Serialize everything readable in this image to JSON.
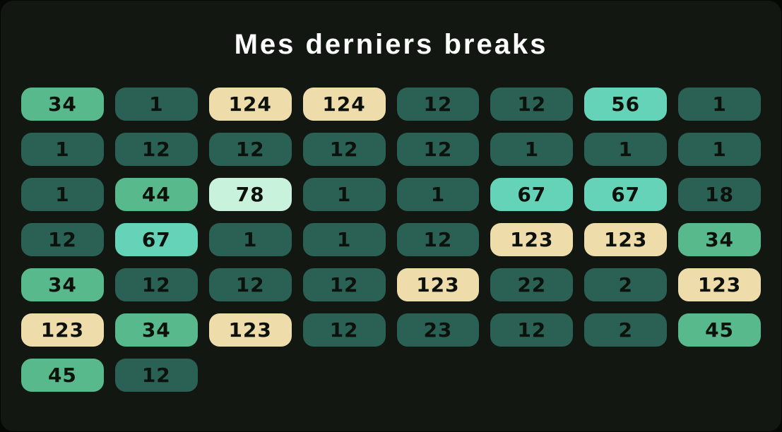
{
  "header": {
    "title": "Mes derniers breaks"
  },
  "colors": {
    "page_bg": "#050805",
    "panel_bg": "#121711",
    "title_text": "#fcfdfc",
    "pill_text": "#0c110c"
  },
  "chart_data": {
    "type": "heatmap",
    "title": "Mes derniers breaks",
    "columns": 8,
    "values": [
      34,
      1,
      124,
      124,
      12,
      12,
      56,
      1,
      1,
      12,
      12,
      12,
      12,
      1,
      1,
      1,
      1,
      44,
      78,
      1,
      1,
      67,
      67,
      18,
      12,
      67,
      1,
      1,
      12,
      123,
      123,
      34,
      34,
      12,
      12,
      12,
      123,
      22,
      2,
      123,
      123,
      34,
      123,
      12,
      23,
      12,
      2,
      45,
      45,
      12
    ],
    "color_scale": [
      {
        "name": "dark-teal",
        "min": 0,
        "max": 29,
        "hex": "#2b6055"
      },
      {
        "name": "green",
        "min": 30,
        "max": 49,
        "hex": "#58b98c"
      },
      {
        "name": "bright-teal",
        "min": 50,
        "max": 69,
        "hex": "#65d3b7"
      },
      {
        "name": "mint",
        "min": 70,
        "max": 99,
        "hex": "#c9f2dd"
      },
      {
        "name": "cream",
        "min": 100,
        "max": 999,
        "hex": "#eedcab"
      }
    ],
    "legend_position": "none",
    "grid": false
  }
}
